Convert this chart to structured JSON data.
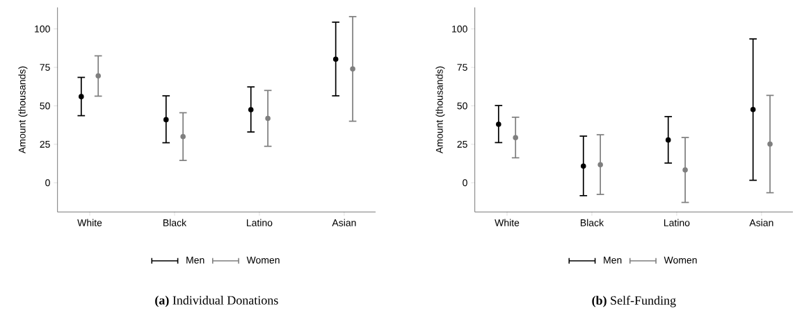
{
  "chart_data": [
    {
      "type": "scatter",
      "title": "**(a)** Individual Donations",
      "ylabel": "Amount (thousands)",
      "categories": [
        "White",
        "Black",
        "Latino",
        "Asian"
      ],
      "ylim": [
        -19,
        114
      ],
      "yticks": [
        0,
        25,
        50,
        75,
        100
      ],
      "legend": "bottom",
      "marker": "circle",
      "grid": false,
      "series": [
        {
          "name": "Men",
          "color": "#000000",
          "values": [
            56,
            41,
            47.5,
            80.3
          ],
          "errors": [
            [
              43.6,
              68.5
            ],
            [
              26,
              56.5
            ],
            [
              33,
              62.3
            ],
            [
              56.5,
              104.4
            ]
          ]
        },
        {
          "name": "Women",
          "color": "#7f7f7f",
          "values": [
            69.5,
            30,
            41.8,
            74
          ],
          "errors": [
            [
              56.3,
              82.5
            ],
            [
              14.5,
              45.5
            ],
            [
              23.7,
              60
            ],
            [
              40,
              108
            ]
          ]
        }
      ]
    },
    {
      "type": "scatter",
      "title": "**(b)** Self-Funding",
      "ylabel": "Amount (thousands)",
      "categories": [
        "White",
        "Black",
        "Latino",
        "Asian"
      ],
      "ylim": [
        -19,
        114
      ],
      "yticks": [
        0,
        25,
        50,
        75,
        100
      ],
      "legend": "bottom",
      "marker": "circle",
      "grid": false,
      "series": [
        {
          "name": "Men",
          "color": "#000000",
          "values": [
            38,
            10.8,
            27.8,
            47.6
          ],
          "errors": [
            [
              26.1,
              50.2
            ],
            [
              -8.4,
              30.3
            ],
            [
              12.8,
              43
            ],
            [
              1.6,
              93.5
            ]
          ]
        },
        {
          "name": "Women",
          "color": "#7f7f7f",
          "values": [
            29.3,
            11.7,
            8.3,
            25.1
          ],
          "errors": [
            [
              16.2,
              42.6
            ],
            [
              -7.6,
              31.2
            ],
            [
              -12.8,
              29.4
            ],
            [
              -6.5,
              56.8
            ]
          ]
        }
      ]
    }
  ]
}
